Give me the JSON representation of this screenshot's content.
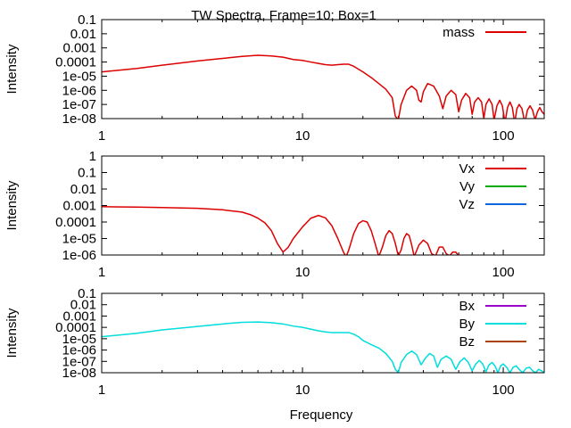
{
  "figure": {
    "title": "TW Spectra, Frame=10; Box=1",
    "xlabel": "Frequency"
  },
  "chart_data": [
    {
      "type": "line",
      "title": "TW Spectra, Frame=10; Box=1",
      "xlabel": "",
      "ylabel": "Intensity",
      "x_scale": "log",
      "y_scale": "log",
      "xlim": [
        1,
        160
      ],
      "ylim": [
        1e-08,
        0.1
      ],
      "x_ticks": [
        "1",
        "10",
        "100"
      ],
      "y_ticks": [
        "0.1",
        "0.01",
        "0.001",
        "0.0001",
        "1e-05",
        "1e-06",
        "1e-07",
        "1e-08"
      ],
      "grid": false,
      "legend_position": "top-right",
      "series": [
        {
          "name": "mass",
          "color": "#dd0000",
          "points": [
            [
              1.0,
              2e-05
            ],
            [
              1.5,
              3.5e-05
            ],
            [
              2.0,
              6e-05
            ],
            [
              3.0,
              0.00012
            ],
            [
              4.0,
              0.00018
            ],
            [
              5.0,
              0.00025
            ],
            [
              6.0,
              0.0003
            ],
            [
              7.0,
              0.00027
            ],
            [
              8.0,
              0.00022
            ],
            [
              9.0,
              0.00015
            ],
            [
              10.0,
              0.00013
            ],
            [
              11.0,
              0.0001
            ],
            [
              12.0,
              8e-05
            ],
            [
              13.0,
              6.5e-05
            ],
            [
              14.0,
              6e-05
            ],
            [
              15.0,
              6.5e-05
            ],
            [
              16.0,
              7e-05
            ],
            [
              17.0,
              7e-05
            ],
            [
              18.0,
              5e-05
            ],
            [
              20.0,
              2e-05
            ],
            [
              22.0,
              8e-06
            ],
            [
              24.0,
              3e-06
            ],
            [
              26.0,
              1.2e-06
            ],
            [
              28.0,
              3e-07
            ],
            [
              29.0,
              1.5e-08
            ],
            [
              30.0,
              8e-09
            ],
            [
              31.0,
              1e-07
            ],
            [
              33.0,
              1e-06
            ],
            [
              35.0,
              2e-06
            ],
            [
              37.0,
              1e-06
            ],
            [
              38.0,
              2e-07
            ],
            [
              39.0,
              1.5e-07
            ],
            [
              40.0,
              8e-07
            ],
            [
              42.0,
              3e-06
            ],
            [
              45.0,
              2e-06
            ],
            [
              48.0,
              4e-07
            ],
            [
              50.0,
              5e-08
            ],
            [
              52.0,
              4e-07
            ],
            [
              55.0,
              1e-06
            ],
            [
              58.0,
              5e-07
            ],
            [
              60.0,
              3e-08
            ],
            [
              62.0,
              2e-07
            ],
            [
              65.0,
              6e-07
            ],
            [
              68.0,
              3e-07
            ],
            [
              70.0,
              2e-08
            ],
            [
              72.0,
              1.5e-07
            ],
            [
              75.0,
              3e-07
            ],
            [
              78.0,
              1.5e-07
            ],
            [
              80.0,
              1e-08
            ],
            [
              82.0,
              1e-07
            ],
            [
              85.0,
              2.5e-07
            ],
            [
              88.0,
              1e-07
            ],
            [
              90.0,
              8e-09
            ],
            [
              93.0,
              8e-08
            ],
            [
              96.0,
              2e-07
            ],
            [
              99.0,
              8e-08
            ],
            [
              102.0,
              5e-09
            ],
            [
              105.0,
              6e-08
            ],
            [
              108.0,
              1.5e-07
            ],
            [
              111.0,
              6e-08
            ],
            [
              114.0,
              5e-09
            ],
            [
              117.0,
              5e-08
            ],
            [
              120.0,
              1e-07
            ],
            [
              124.0,
              5e-08
            ],
            [
              128.0,
              5e-09
            ],
            [
              132.0,
              4e-08
            ],
            [
              136.0,
              8e-08
            ],
            [
              140.0,
              4e-08
            ],
            [
              144.0,
              8e-09
            ],
            [
              148.0,
              3e-08
            ],
            [
              152.0,
              6e-08
            ],
            [
              156.0,
              3e-08
            ],
            [
              160.0,
              2e-08
            ]
          ]
        }
      ]
    },
    {
      "type": "line",
      "title": "",
      "xlabel": "",
      "ylabel": "Intensity",
      "x_scale": "log",
      "y_scale": "log",
      "xlim": [
        1,
        160
      ],
      "ylim": [
        1e-06,
        1
      ],
      "x_ticks": [
        "1",
        "10",
        "100"
      ],
      "y_ticks": [
        "1",
        "0.1",
        "0.01",
        "0.001",
        "0.0001",
        "1e-05",
        "1e-06"
      ],
      "grid": false,
      "legend_position": "top-right",
      "series": [
        {
          "name": "Vx",
          "color": "#dd0000",
          "points": [
            [
              1.0,
              0.00085
            ],
            [
              1.5,
              0.0008
            ],
            [
              2.0,
              0.00075
            ],
            [
              3.0,
              0.00068
            ],
            [
              4.0,
              0.00055
            ],
            [
              5.0,
              0.0004
            ],
            [
              5.5,
              0.00028
            ],
            [
              6.0,
              0.00017
            ],
            [
              6.5,
              9e-05
            ],
            [
              7.0,
              3e-05
            ],
            [
              7.5,
              5e-06
            ],
            [
              8.0,
              1.5e-06
            ],
            [
              8.5,
              3e-06
            ],
            [
              9.0,
              1e-05
            ],
            [
              10.0,
              5e-05
            ],
            [
              11.0,
              0.00017
            ],
            [
              12.0,
              0.00025
            ],
            [
              13.0,
              0.00018
            ],
            [
              14.0,
              6e-05
            ],
            [
              15.0,
              1e-05
            ],
            [
              16.0,
              1.5e-06
            ],
            [
              16.5,
              8e-07
            ],
            [
              17.0,
              2e-06
            ],
            [
              18.0,
              2e-05
            ],
            [
              19.0,
              8e-05
            ],
            [
              20.0,
              0.00012
            ],
            [
              21.0,
              0.0001
            ],
            [
              22.0,
              3e-05
            ],
            [
              23.0,
              5e-06
            ],
            [
              24.0,
              8e-07
            ],
            [
              25.0,
              3e-06
            ],
            [
              26.0,
              1.5e-05
            ],
            [
              27.0,
              3e-05
            ],
            [
              28.0,
              2e-05
            ],
            [
              29.0,
              5e-06
            ],
            [
              30.0,
              9e-07
            ],
            [
              31.0,
              2e-06
            ],
            [
              32.0,
              1e-05
            ],
            [
              33.0,
              2e-05
            ],
            [
              34.0,
              1.5e-05
            ],
            [
              35.0,
              4e-06
            ],
            [
              36.0,
              8e-07
            ],
            [
              38.0,
              4e-06
            ],
            [
              40.0,
              8e-06
            ],
            [
              42.0,
              5e-06
            ],
            [
              44.0,
              1.2e-06
            ],
            [
              46.0,
              9e-07
            ],
            [
              48.0,
              3e-06
            ],
            [
              50.0,
              3e-06
            ],
            [
              52.0,
              1.2e-06
            ],
            [
              54.0,
              9e-07
            ],
            [
              56.0,
              1.5e-06
            ],
            [
              58.0,
              1.5e-06
            ],
            [
              60.0,
              9e-07
            ],
            [
              62.0,
              8e-07
            ]
          ]
        },
        {
          "name": "Vy",
          "color": "#00aa00",
          "points": []
        },
        {
          "name": "Vz",
          "color": "#1166dd",
          "points": []
        }
      ]
    },
    {
      "type": "line",
      "title": "",
      "xlabel": "Frequency",
      "ylabel": "Intensity",
      "x_scale": "log",
      "y_scale": "log",
      "xlim": [
        1,
        160
      ],
      "ylim": [
        1e-08,
        0.1
      ],
      "x_ticks": [
        "1",
        "10",
        "100"
      ],
      "y_ticks": [
        "0.1",
        "0.01",
        "0.001",
        "0.0001",
        "1e-05",
        "1e-06",
        "1e-07",
        "1e-08"
      ],
      "grid": false,
      "legend_position": "top-right",
      "series": [
        {
          "name": "Bx",
          "color": "#9900cc",
          "points": []
        },
        {
          "name": "By",
          "color": "#00dddd",
          "points": [
            [
              1.0,
              1.5e-05
            ],
            [
              1.5,
              3e-05
            ],
            [
              2.0,
              6e-05
            ],
            [
              3.0,
              0.00012
            ],
            [
              4.0,
              0.0002
            ],
            [
              5.0,
              0.00028
            ],
            [
              6.0,
              0.0003
            ],
            [
              7.0,
              0.00026
            ],
            [
              8.0,
              0.0002
            ],
            [
              9.0,
              0.00013
            ],
            [
              10.0,
              0.0001
            ],
            [
              11.0,
              7e-05
            ],
            [
              12.0,
              5e-05
            ],
            [
              13.0,
              4e-05
            ],
            [
              14.0,
              3.5e-05
            ],
            [
              15.0,
              3.5e-05
            ],
            [
              16.0,
              3.5e-05
            ],
            [
              17.0,
              3.5e-05
            ],
            [
              18.0,
              2.5e-05
            ],
            [
              19.0,
              1.5e-05
            ],
            [
              20.0,
              7e-06
            ],
            [
              22.0,
              3e-06
            ],
            [
              24.0,
              1.5e-06
            ],
            [
              26.0,
              5e-07
            ],
            [
              28.0,
              1e-07
            ],
            [
              29.0,
              2e-08
            ],
            [
              30.0,
              1e-08
            ],
            [
              31.0,
              8e-08
            ],
            [
              33.0,
              4e-07
            ],
            [
              35.0,
              8e-07
            ],
            [
              37.0,
              4e-07
            ],
            [
              39.0,
              5e-08
            ],
            [
              41.0,
              2e-07
            ],
            [
              43.0,
              5e-07
            ],
            [
              45.0,
              3e-07
            ],
            [
              47.0,
              3e-08
            ],
            [
              49.0,
              1.5e-07
            ],
            [
              52.0,
              3e-07
            ],
            [
              55.0,
              1.5e-07
            ],
            [
              58.0,
              2e-08
            ],
            [
              61.0,
              1e-07
            ],
            [
              64.0,
              2e-07
            ],
            [
              67.0,
              8e-08
            ],
            [
              70.0,
              1.5e-08
            ],
            [
              73.0,
              6e-08
            ],
            [
              76.0,
              1.2e-07
            ],
            [
              79.0,
              6e-08
            ],
            [
              82.0,
              1.2e-08
            ],
            [
              85.0,
              5e-08
            ],
            [
              88.0,
              8e-08
            ],
            [
              91.0,
              4e-08
            ],
            [
              94.0,
              1e-08
            ],
            [
              97.0,
              4e-08
            ],
            [
              100.0,
              6e-08
            ],
            [
              104.0,
              3e-08
            ],
            [
              108.0,
              1e-08
            ],
            [
              112.0,
              3e-08
            ],
            [
              116.0,
              4e-08
            ],
            [
              120.0,
              2e-08
            ],
            [
              125.0,
              1e-08
            ],
            [
              130.0,
              2.5e-08
            ],
            [
              135.0,
              3e-08
            ],
            [
              140.0,
              1.5e-08
            ],
            [
              145.0,
              1e-08
            ],
            [
              150.0,
              2e-08
            ],
            [
              155.0,
              1.5e-08
            ],
            [
              160.0,
              1e-08
            ]
          ]
        },
        {
          "name": "Bz",
          "color": "#aa4400",
          "points": []
        }
      ]
    }
  ]
}
